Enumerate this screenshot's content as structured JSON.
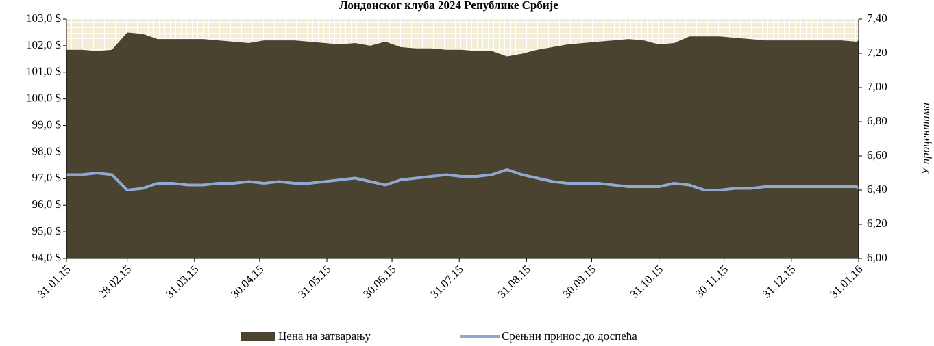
{
  "chart_data": {
    "type": "area_line",
    "title": "Лондонског клуба 2024 Републике Србије",
    "y2label": "У процентима",
    "x": [
      "31.01.15",
      "07.02.15",
      "14.02.15",
      "21.02.15",
      "28.02.15",
      "07.03.15",
      "14.03.15",
      "21.03.15",
      "28.03.15",
      "04.04.15",
      "11.04.15",
      "18.04.15",
      "25.04.15",
      "02.05.15",
      "09.05.15",
      "16.05.15",
      "23.05.15",
      "30.05.15",
      "06.06.15",
      "13.06.15",
      "20.06.15",
      "27.06.15",
      "04.07.15",
      "11.07.15",
      "18.07.15",
      "25.07.15",
      "01.08.15",
      "08.08.15",
      "15.08.15",
      "22.08.15",
      "29.08.15",
      "05.09.15",
      "12.09.15",
      "19.09.15",
      "26.09.15",
      "03.10.15",
      "10.10.15",
      "17.10.15",
      "24.10.15",
      "31.10.15",
      "07.11.15",
      "14.11.15",
      "21.11.15",
      "28.11.15",
      "05.12.15",
      "12.12.15",
      "19.12.15",
      "26.12.15",
      "02.01.16",
      "09.01.16",
      "16.01.16",
      "23.01.16",
      "30.01.16",
      "31.01.16"
    ],
    "series": [
      {
        "name": "Цена на затварању",
        "color": "#4a4330",
        "axis": "y",
        "values": [
          101.85,
          101.85,
          101.8,
          101.85,
          102.5,
          102.45,
          102.25,
          102.25,
          102.25,
          102.25,
          102.2,
          102.15,
          102.1,
          102.2,
          102.2,
          102.2,
          102.15,
          102.1,
          102.05,
          102.1,
          102.0,
          102.15,
          101.95,
          101.9,
          101.9,
          101.85,
          101.85,
          101.8,
          101.8,
          101.6,
          101.7,
          101.85,
          101.95,
          102.05,
          102.1,
          102.15,
          102.2,
          102.25,
          102.2,
          102.05,
          102.1,
          102.35,
          102.35,
          102.35,
          102.3,
          102.25,
          102.2,
          102.2,
          102.2,
          102.2,
          102.2,
          102.2,
          102.15,
          102.2
        ]
      },
      {
        "name": "Срењни принос до доспећа",
        "color": "#8fa9d3",
        "axis": "y2",
        "values": [
          6.49,
          6.49,
          6.5,
          6.49,
          6.4,
          6.41,
          6.44,
          6.44,
          6.43,
          6.43,
          6.44,
          6.44,
          6.45,
          6.44,
          6.45,
          6.44,
          6.44,
          6.45,
          6.46,
          6.47,
          6.45,
          6.43,
          6.46,
          6.47,
          6.48,
          6.49,
          6.48,
          6.48,
          6.49,
          6.52,
          6.49,
          6.47,
          6.45,
          6.44,
          6.44,
          6.44,
          6.43,
          6.42,
          6.42,
          6.42,
          6.44,
          6.43,
          6.4,
          6.4,
          6.41,
          6.41,
          6.42,
          6.42,
          6.42,
          6.42,
          6.42,
          6.42,
          6.42,
          6.41
        ]
      }
    ],
    "xlim": [
      "31.01.15",
      "31.01.16"
    ],
    "xticks": [
      "31.01.15",
      "28.02.15",
      "31.03.15",
      "30.04.15",
      "31.05.15",
      "30.06.15",
      "31.07.15",
      "31.08.15",
      "30.09.15",
      "31.10.15",
      "30.11.15",
      "31.12.15",
      "31.01.16"
    ],
    "ylim": [
      94,
      103
    ],
    "yticks": [
      {
        "value": 94,
        "label": "94,0 $"
      },
      {
        "value": 95,
        "label": "95,0 $"
      },
      {
        "value": 96,
        "label": "96,0 $"
      },
      {
        "value": 97,
        "label": "97,0 $"
      },
      {
        "value": 98,
        "label": "98,0 $"
      },
      {
        "value": 99,
        "label": "99,0 $"
      },
      {
        "value": 100,
        "label": "100,0 $"
      },
      {
        "value": 101,
        "label": "101,0 $"
      },
      {
        "value": 102,
        "label": "102,0 $"
      },
      {
        "value": 103,
        "label": "103,0 $"
      }
    ],
    "y2lim": [
      6.0,
      7.4
    ],
    "y2ticks": [
      {
        "value": 6.0,
        "label": "6,00"
      },
      {
        "value": 6.2,
        "label": "6,20"
      },
      {
        "value": 6.4,
        "label": "6,40"
      },
      {
        "value": 6.6,
        "label": "6,60"
      },
      {
        "value": 6.8,
        "label": "6,80"
      },
      {
        "value": 7.0,
        "label": "7,00"
      },
      {
        "value": 7.2,
        "label": "7,20"
      },
      {
        "value": 7.4,
        "label": "7,40"
      }
    ],
    "legend": "bottom"
  }
}
